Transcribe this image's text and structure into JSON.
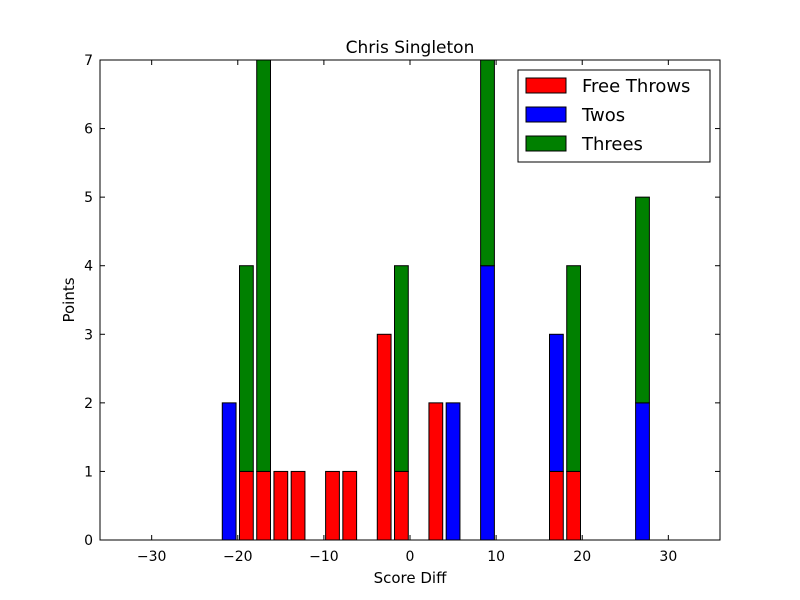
{
  "chart_data": {
    "type": "bar",
    "stacked": true,
    "title": "Chris Singleton",
    "xlabel": "Score Diff",
    "ylabel": "Points",
    "xlim": [
      -36,
      36
    ],
    "ylim": [
      0,
      7
    ],
    "xticks": [
      -30,
      -20,
      -10,
      0,
      10,
      20,
      30
    ],
    "xtick_labels": [
      "−30",
      "−20",
      "−10",
      "0",
      "10",
      "20",
      "30"
    ],
    "yticks": [
      0,
      1,
      2,
      3,
      4,
      5,
      6,
      7
    ],
    "ytick_labels": [
      "0",
      "1",
      "2",
      "3",
      "4",
      "5",
      "6",
      "7"
    ],
    "grid": false,
    "legend": "top-right",
    "x": [
      -35,
      -33,
      -31,
      -29,
      -27,
      -25,
      -23,
      -21,
      -19,
      -17,
      -15,
      -13,
      -11,
      -9,
      -7,
      -5,
      -3,
      -1,
      1,
      3,
      5,
      7,
      9,
      11,
      13,
      15,
      17,
      19,
      21,
      23,
      25,
      27,
      29,
      31,
      33,
      35
    ],
    "series": [
      {
        "name": "Free Throws",
        "color": "#ff0000",
        "values": [
          0,
          0,
          0,
          0,
          0,
          0,
          0,
          0,
          1,
          1,
          1,
          1,
          0,
          1,
          1,
          0,
          3,
          1,
          0,
          2,
          0,
          0,
          0,
          0,
          0,
          0,
          1,
          1,
          0,
          0,
          0,
          0,
          0,
          0,
          0,
          0
        ]
      },
      {
        "name": "Twos",
        "color": "#0000ff",
        "values": [
          0,
          0,
          0,
          0,
          0,
          0,
          0,
          2,
          0,
          0,
          0,
          0,
          0,
          0,
          0,
          0,
          0,
          0,
          0,
          0,
          2,
          0,
          4,
          0,
          0,
          0,
          2,
          0,
          0,
          0,
          0,
          2,
          0,
          0,
          0,
          0
        ]
      },
      {
        "name": "Threes",
        "color": "#008000",
        "values": [
          0,
          0,
          0,
          0,
          0,
          0,
          0,
          0,
          3,
          6,
          0,
          0,
          0,
          0,
          0,
          0,
          0,
          3,
          0,
          0,
          0,
          0,
          3,
          0,
          0,
          0,
          0,
          3,
          0,
          0,
          0,
          3,
          0,
          0,
          0,
          0
        ]
      }
    ]
  }
}
